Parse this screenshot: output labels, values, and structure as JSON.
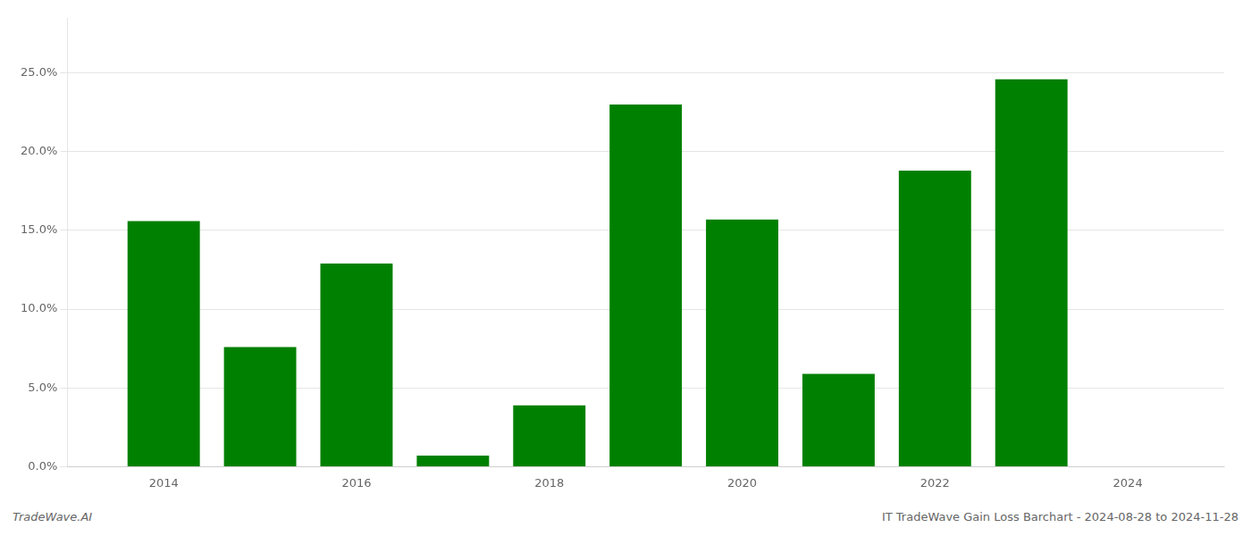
{
  "chart_data": {
    "type": "bar",
    "x": [
      2014,
      2015,
      2016,
      2017,
      2018,
      2019,
      2020,
      2021,
      2022,
      2023
    ],
    "values": [
      0.156,
      0.076,
      0.129,
      0.007,
      0.039,
      0.23,
      0.157,
      0.059,
      0.188,
      0.246
    ],
    "color": "#008000",
    "xlim": [
      2013.0,
      2025.0
    ],
    "xticks": [
      2014,
      2016,
      2018,
      2020,
      2022,
      2024
    ],
    "ylim": [
      0,
      0.285
    ],
    "yticks": [
      {
        "value": 0.0,
        "label": "0.0%"
      },
      {
        "value": 0.05,
        "label": "5.0%"
      },
      {
        "value": 0.1,
        "label": "10.0%"
      },
      {
        "value": 0.15,
        "label": "15.0%"
      },
      {
        "value": 0.2,
        "label": "20.0%"
      },
      {
        "value": 0.25,
        "label": "25.0%"
      }
    ],
    "grid": true,
    "annotations": [
      "TradeWave.AI",
      "IT TradeWave Gain Loss Barchart - 2024-08-28 to 2024-11-28"
    ]
  }
}
